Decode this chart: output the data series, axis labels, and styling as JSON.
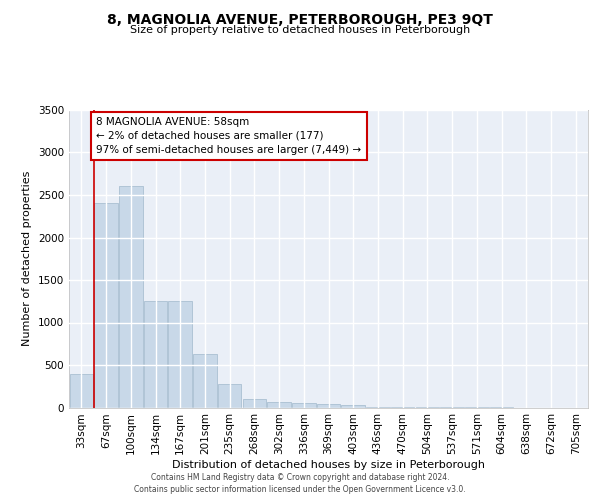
{
  "title": "8, MAGNOLIA AVENUE, PETERBOROUGH, PE3 9QT",
  "subtitle": "Size of property relative to detached houses in Peterborough",
  "xlabel": "Distribution of detached houses by size in Peterborough",
  "ylabel": "Number of detached properties",
  "categories": [
    "33sqm",
    "67sqm",
    "100sqm",
    "134sqm",
    "167sqm",
    "201sqm",
    "235sqm",
    "268sqm",
    "302sqm",
    "336sqm",
    "369sqm",
    "403sqm",
    "436sqm",
    "470sqm",
    "504sqm",
    "537sqm",
    "571sqm",
    "604sqm",
    "638sqm",
    "672sqm",
    "705sqm"
  ],
  "values": [
    400,
    2400,
    2600,
    1250,
    1250,
    630,
    280,
    100,
    60,
    55,
    45,
    35,
    5,
    3,
    2,
    1,
    1,
    1,
    0,
    0,
    0
  ],
  "bar_color": "#c8d8e8",
  "bar_edge_color": "#a0b8cc",
  "annotation_line1": "8 MAGNOLIA AVENUE: 58sqm",
  "annotation_line2": "← 2% of detached houses are smaller (177)",
  "annotation_line3": "97% of semi-detached houses are larger (7,449) →",
  "annotation_box_color": "#ffffff",
  "annotation_box_edge_color": "#cc0000",
  "vline_color": "#cc0000",
  "vline_x": 0.5,
  "background_color": "#eaeff7",
  "grid_color": "#ffffff",
  "ylim": [
    0,
    3500
  ],
  "yticks": [
    0,
    500,
    1000,
    1500,
    2000,
    2500,
    3000,
    3500
  ],
  "footer_line1": "Contains HM Land Registry data © Crown copyright and database right 2024.",
  "footer_line2": "Contains public sector information licensed under the Open Government Licence v3.0.",
  "title_fontsize": 10,
  "subtitle_fontsize": 8,
  "ylabel_fontsize": 8,
  "xlabel_fontsize": 8,
  "tick_fontsize": 7.5,
  "annotation_fontsize": 7.5,
  "footer_fontsize": 5.5
}
